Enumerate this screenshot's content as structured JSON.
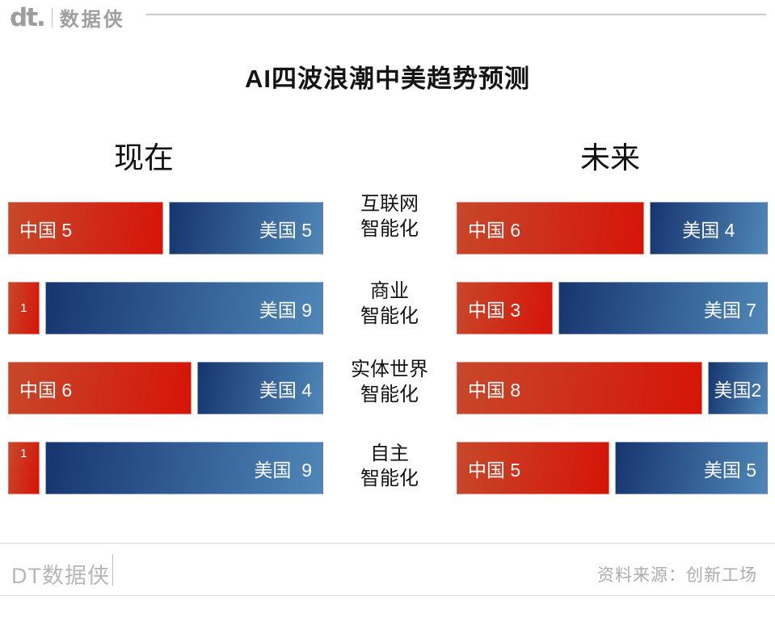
{
  "header": {
    "logo_mark": "dt.",
    "logo_text": "数据侠"
  },
  "title": "AI四波浪潮中美趋势预测",
  "chart_data": {
    "type": "bar",
    "variant": "paired-horizontal-stacked-comparison",
    "title": "AI四波浪潮中美趋势预测",
    "row_total": 10,
    "categories": [
      "互联网智能化",
      "商业智能化",
      "实体世界智能化",
      "自主智能化"
    ],
    "category_lines": [
      [
        "互联网",
        "智能化"
      ],
      [
        "商业",
        "智能化"
      ],
      [
        "实体世界",
        "智能化"
      ],
      [
        "自主",
        "智能化"
      ]
    ],
    "panels": [
      {
        "header": "现在",
        "rows": [
          {
            "china": {
              "value": 5,
              "label": "中国 5",
              "align": "left"
            },
            "usa": {
              "value": 5,
              "label": "美国 5",
              "align": "right"
            }
          },
          {
            "china": {
              "value": 1,
              "label": "1",
              "align": "center",
              "small": true
            },
            "usa": {
              "value": 9,
              "label": "美国 9",
              "align": "right"
            }
          },
          {
            "china": {
              "value": 6,
              "label": "中国 6",
              "align": "left"
            },
            "usa": {
              "value": 4,
              "label": "美国 4",
              "align": "right"
            }
          },
          {
            "china": {
              "value": 1,
              "label": "1",
              "align": "center",
              "valign": "top",
              "small": true
            },
            "usa": {
              "value": 9,
              "label": "美国  9",
              "align": "right"
            }
          }
        ]
      },
      {
        "header": "未来",
        "rows": [
          {
            "china": {
              "value": 6,
              "label": "中国 6",
              "align": "left"
            },
            "usa": {
              "value": 4,
              "label": "美国 4",
              "align": "center"
            }
          },
          {
            "china": {
              "value": 3,
              "label": "中国 3",
              "align": "left"
            },
            "usa": {
              "value": 7,
              "label": "美国 7",
              "align": "right"
            }
          },
          {
            "china": {
              "value": 8,
              "label": "中国 8",
              "align": "left"
            },
            "usa": {
              "value": 2,
              "label": "美国2",
              "align": "center"
            }
          },
          {
            "china": {
              "value": 5,
              "label": "中国 5",
              "align": "left"
            },
            "usa": {
              "value": 5,
              "label": "美国 5",
              "align": "right"
            }
          }
        ]
      }
    ],
    "colors": {
      "china_gradient": [
        "#c7482a",
        "#d61408"
      ],
      "usa_gradient": [
        "#17356f",
        "#4f87b7"
      ]
    },
    "legend_position": "none",
    "grid": false
  },
  "footer": {
    "brand": "DT数据侠",
    "source": "资料来源：创新工场"
  }
}
